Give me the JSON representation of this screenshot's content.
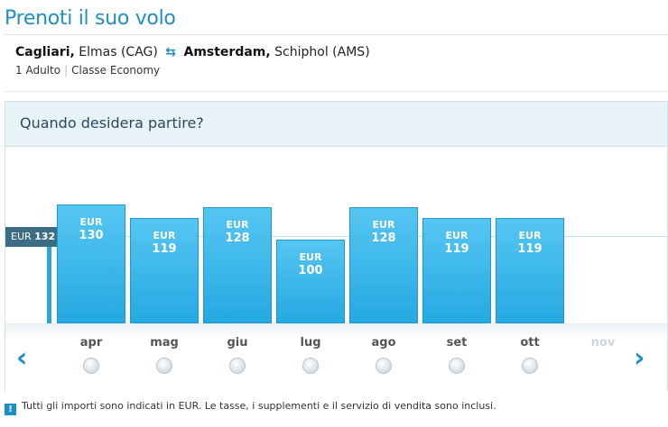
{
  "header": {
    "title": "Prenoti il suo volo"
  },
  "route": {
    "origin_city": "Cagliari,",
    "origin_airport": "Elmas (CAG)",
    "destination_city": "Amsterdam,",
    "destination_airport": "Schiphol (AMS)",
    "swap_icon": "round-trip-arrows-icon"
  },
  "trip": {
    "passengers": "1 Adulto",
    "cabin": "Classe Economy"
  },
  "calendar": {
    "question": "Quando desidera partire?",
    "reference": {
      "currency": "EUR",
      "amount": "132"
    },
    "bars": [
      {
        "currency": "EUR",
        "amount": "130",
        "value": 130
      },
      {
        "currency": "EUR",
        "amount": "119",
        "value": 119
      },
      {
        "currency": "EUR",
        "amount": "128",
        "value": 128
      },
      {
        "currency": "EUR",
        "amount": "100",
        "value": 100
      },
      {
        "currency": "EUR",
        "amount": "128",
        "value": 128
      },
      {
        "currency": "EUR",
        "amount": "119",
        "value": 119
      },
      {
        "currency": "EUR",
        "amount": "119",
        "value": 119
      }
    ],
    "months": [
      {
        "label": "apr",
        "enabled": true
      },
      {
        "label": "mag",
        "enabled": true
      },
      {
        "label": "giu",
        "enabled": true
      },
      {
        "label": "lug",
        "enabled": true
      },
      {
        "label": "ago",
        "enabled": true
      },
      {
        "label": "set",
        "enabled": true
      },
      {
        "label": "ott",
        "enabled": true
      },
      {
        "label": "nov",
        "enabled": false
      }
    ],
    "prev_icon": "chevron-left-icon",
    "next_icon": "chevron-right-icon"
  },
  "footer": {
    "icon": "info-icon",
    "note": "Tutti gli importi sono indicati in EUR. Le tasse, i supplementi e il servizio di vendita sono inclusi."
  }
}
